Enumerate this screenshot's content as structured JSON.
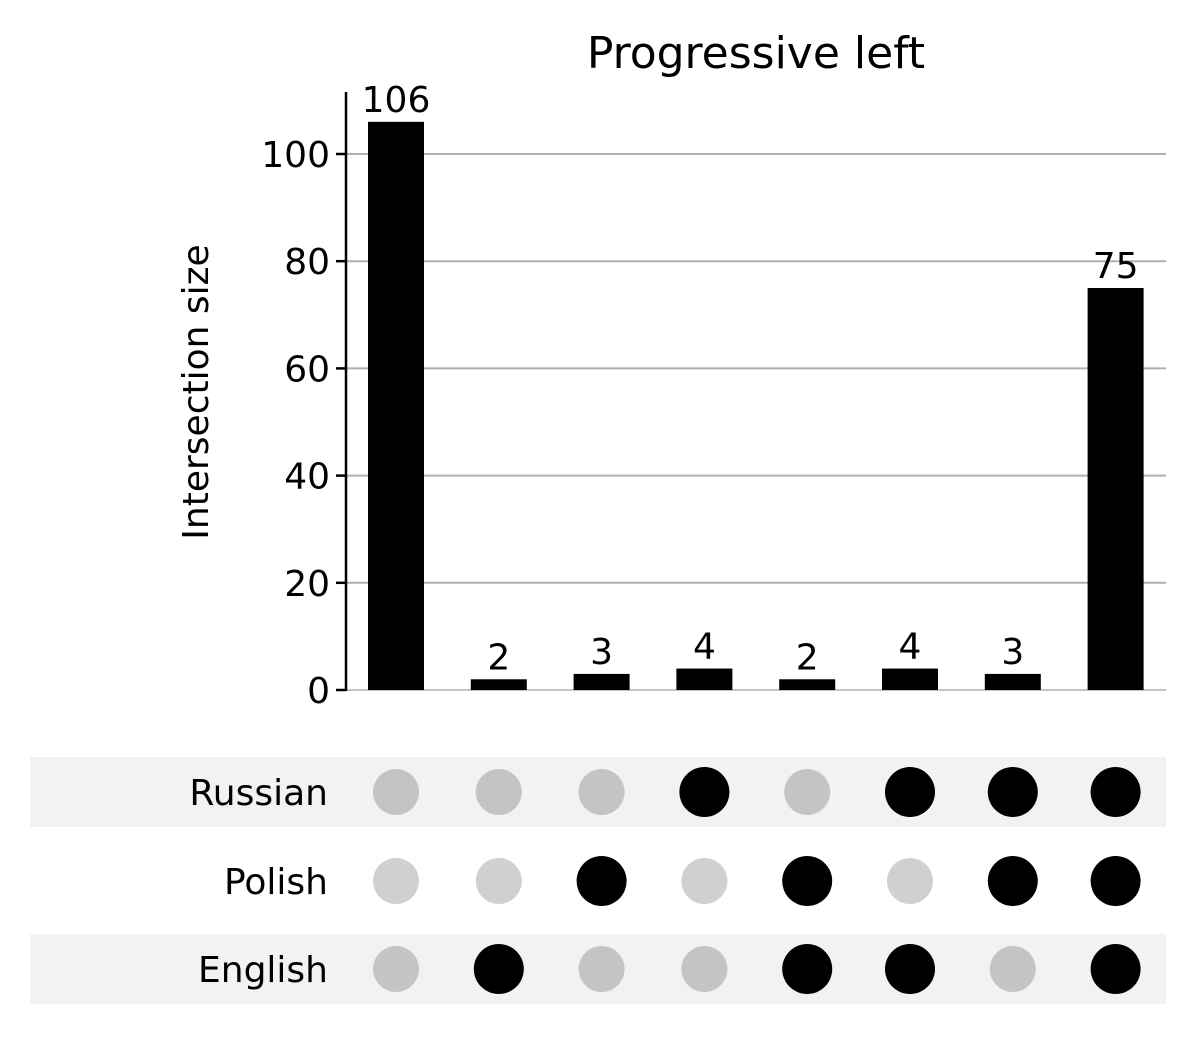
{
  "chart_data": {
    "type": "bar",
    "subtype": "upset",
    "title": "Progressive left",
    "ylabel": "Intersection size",
    "ylim": [
      0,
      110
    ],
    "yticks": [
      0,
      20,
      40,
      60,
      80,
      100
    ],
    "grid": true,
    "sets": [
      "Russian",
      "Polish",
      "English"
    ],
    "intersections": [
      {
        "value": 106,
        "members": []
      },
      {
        "value": 2,
        "members": [
          "English"
        ]
      },
      {
        "value": 3,
        "members": [
          "Polish"
        ]
      },
      {
        "value": 4,
        "members": [
          "Russian"
        ]
      },
      {
        "value": 2,
        "members": [
          "Polish",
          "English"
        ]
      },
      {
        "value": 4,
        "members": [
          "Russian",
          "English"
        ]
      },
      {
        "value": 3,
        "members": [
          "Russian",
          "Polish"
        ]
      },
      {
        "value": 75,
        "members": [
          "Russian",
          "Polish",
          "English"
        ]
      }
    ],
    "colors": {
      "bar": "#000000",
      "dot_active": "#000000",
      "dot_inactive_shaded": "#c4c4c4",
      "dot_inactive_plain": "#d0d0d0",
      "row_shade": "#f2f2f2",
      "grid": "#b0b0b0"
    }
  }
}
